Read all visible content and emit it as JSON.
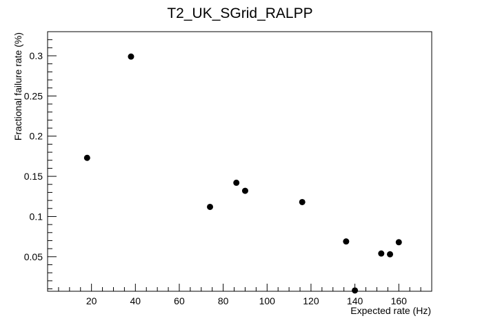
{
  "chart_data": {
    "type": "scatter",
    "title": "T2_UK_SGrid_RALPP",
    "xlabel": "Expected rate (Hz)",
    "ylabel": "Fractional failure rate (%)",
    "xlim": [
      0,
      175
    ],
    "ylim": [
      0.007,
      0.33
    ],
    "x_ticks": [
      20,
      40,
      60,
      80,
      100,
      120,
      140,
      160
    ],
    "x_tick_labels": [
      "20",
      "40",
      "60",
      "80",
      "100",
      "120",
      "140",
      "160"
    ],
    "y_ticks": [
      0.05,
      0.1,
      0.15,
      0.2,
      0.25,
      0.3
    ],
    "y_tick_labels": [
      "0.05",
      "0.1",
      "0.15",
      "0.2",
      "0.25",
      "0.3"
    ],
    "grid": false,
    "legend": "none",
    "marker_color": "#000000",
    "points": [
      {
        "x": 18,
        "y": 0.173
      },
      {
        "x": 38,
        "y": 0.299
      },
      {
        "x": 74,
        "y": 0.112
      },
      {
        "x": 86,
        "y": 0.142
      },
      {
        "x": 90,
        "y": 0.132
      },
      {
        "x": 116,
        "y": 0.118
      },
      {
        "x": 136,
        "y": 0.069
      },
      {
        "x": 140,
        "y": 0.008
      },
      {
        "x": 152,
        "y": 0.054
      },
      {
        "x": 156,
        "y": 0.053
      },
      {
        "x": 160,
        "y": 0.068
      }
    ]
  }
}
